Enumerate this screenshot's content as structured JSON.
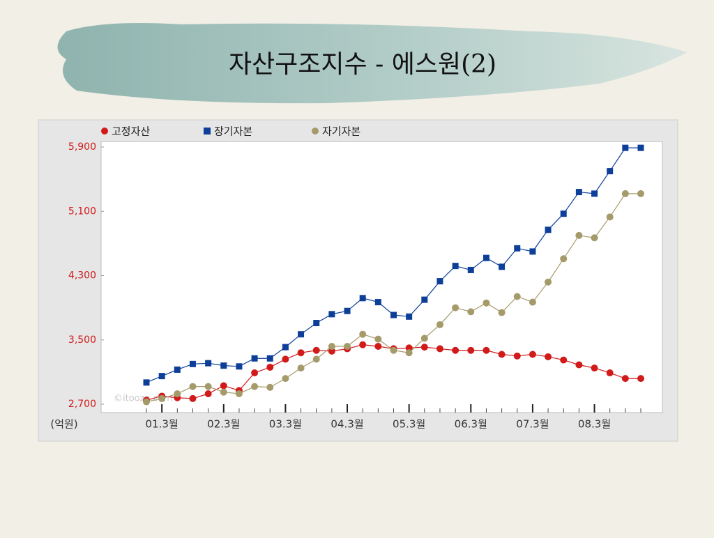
{
  "chart_data": {
    "type": "line",
    "title": "자산구조지수 - 에스원(2)",
    "y_unit_label": "(억원)",
    "watermark": "©itooza.com",
    "categories": [
      null,
      "01.3월",
      null,
      null,
      null,
      "02.3월",
      null,
      null,
      null,
      "03.3월",
      null,
      null,
      null,
      "04.3월",
      null,
      null,
      null,
      "05.3월",
      null,
      null,
      null,
      "06.3월",
      null,
      null,
      null,
      "07.3월",
      null,
      null,
      null,
      "08.3월",
      null,
      null,
      null
    ],
    "series": [
      {
        "name": "고정자산",
        "color": "#d11a1a",
        "marker": "circle",
        "values": [
          2750,
          2800,
          2780,
          2770,
          2830,
          2930,
          2870,
          3090,
          3160,
          3260,
          3340,
          3370,
          3360,
          3390,
          3440,
          3420,
          3390,
          3400,
          3410,
          3390,
          3370,
          3370,
          3370,
          3320,
          3300,
          3320,
          3290,
          3250,
          3190,
          3150,
          3090,
          3020,
          3020
        ]
      },
      {
        "name": "장기자본",
        "color": "#0d3f99",
        "marker": "square",
        "values": [
          2970,
          3050,
          3130,
          3200,
          3210,
          3180,
          3170,
          3270,
          3270,
          3410,
          3570,
          3710,
          3820,
          3860,
          4020,
          3970,
          3810,
          3790,
          4000,
          4230,
          4420,
          4370,
          4520,
          4410,
          4640,
          4600,
          4870,
          5070,
          5340,
          5320,
          5600,
          5890,
          5890
        ]
      },
      {
        "name": "자기자본",
        "color": "#a59a6a",
        "marker": "circle",
        "values": [
          2730,
          2770,
          2830,
          2920,
          2920,
          2850,
          2830,
          2920,
          2910,
          3020,
          3150,
          3260,
          3420,
          3420,
          3570,
          3510,
          3370,
          3340,
          3520,
          3690,
          3900,
          3850,
          3960,
          3840,
          4040,
          3970,
          4220,
          4510,
          4800,
          4770,
          5030,
          5320,
          5320
        ]
      }
    ],
    "ylim": [
      2700,
      5900
    ],
    "yticks": [
      {
        "value": 2700,
        "label": "2,700"
      },
      {
        "value": 3500,
        "label": "3,500"
      },
      {
        "value": 4300,
        "label": "4,300"
      },
      {
        "value": 5100,
        "label": "5,100"
      },
      {
        "value": 5900,
        "label": "5,900"
      }
    ],
    "ytick_color": "#d11a1a",
    "legend": "top",
    "grid": false
  }
}
